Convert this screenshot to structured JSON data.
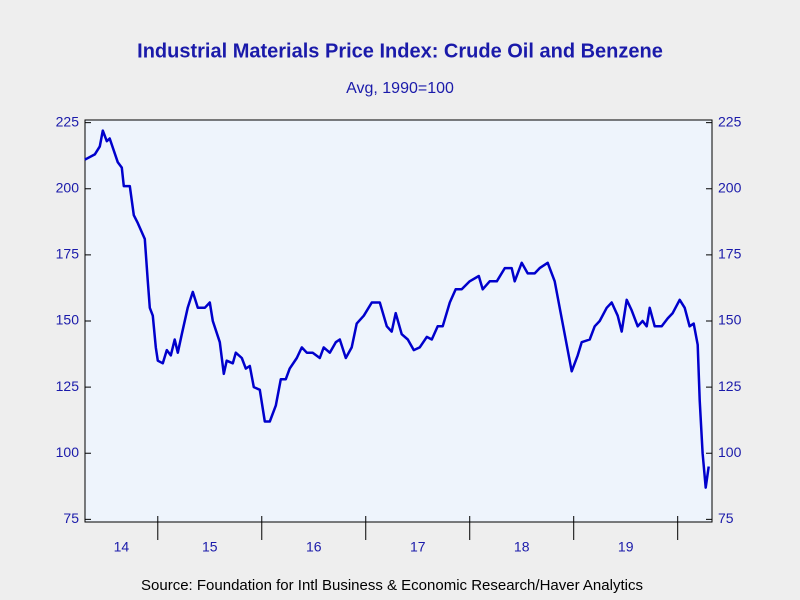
{
  "chart_data": {
    "type": "line",
    "title": "Industrial Materials Price Index: Crude Oil and Benzene",
    "subtitle": "Avg, 1990=100",
    "source": "Source:  Foundation for Intl Business & Economic Research/Haver Analytics",
    "x": [
      2014.298,
      2014.394,
      2014.442,
      2014.471,
      2014.51,
      2014.538,
      2014.615,
      2014.654,
      2014.673,
      2014.731,
      2014.769,
      2014.808,
      2014.875,
      2014.904,
      2014.923,
      2014.952,
      2014.981,
      2015.0,
      2015.048,
      2015.087,
      2015.125,
      2015.163,
      2015.192,
      2015.231,
      2015.288,
      2015.337,
      2015.385,
      2015.452,
      2015.5,
      2015.529,
      2015.596,
      2015.635,
      2015.663,
      2015.721,
      2015.75,
      2015.808,
      2015.846,
      2015.885,
      2015.923,
      2015.981,
      2016.029,
      2016.077,
      2016.135,
      2016.183,
      2016.231,
      2016.269,
      2016.337,
      2016.385,
      2016.433,
      2016.49,
      2016.558,
      2016.596,
      2016.654,
      2016.712,
      2016.75,
      2016.808,
      2016.865,
      2016.913,
      2016.981,
      2017.058,
      2017.135,
      2017.202,
      2017.25,
      2017.288,
      2017.346,
      2017.404,
      2017.462,
      2017.519,
      2017.587,
      2017.635,
      2017.692,
      2017.74,
      2017.808,
      2017.865,
      2017.923,
      2018.0,
      2018.087,
      2018.125,
      2018.192,
      2018.26,
      2018.337,
      2018.404,
      2018.433,
      2018.5,
      2018.558,
      2018.625,
      2018.673,
      2018.75,
      2018.817,
      2018.865,
      2018.913,
      2018.981,
      2019.038,
      2019.077,
      2019.154,
      2019.202,
      2019.25,
      2019.317,
      2019.365,
      2019.423,
      2019.462,
      2019.51,
      2019.558,
      2019.615,
      2019.663,
      2019.702,
      2019.731,
      2019.779,
      2019.846,
      2019.904,
      2019.952,
      2020.019,
      2020.067,
      2020.115,
      2020.154,
      2020.192,
      2020.212,
      2020.24,
      2020.269,
      2020.298
    ],
    "series": [
      {
        "name": "Crude Oil and Benzene",
        "color": "#0000cc",
        "values": [
          211,
          213,
          216,
          222,
          218,
          219,
          210,
          208,
          201,
          201,
          190,
          187,
          181,
          165,
          155,
          152,
          140,
          135,
          134,
          139,
          137,
          143,
          138,
          145,
          155,
          161,
          155,
          155,
          157,
          150,
          142,
          130,
          135,
          134,
          138,
          136,
          132,
          133,
          125,
          124,
          112,
          112,
          118,
          128,
          128,
          132,
          136,
          140,
          138,
          138,
          136,
          140,
          138,
          142,
          143,
          136,
          140,
          149,
          152,
          157,
          157,
          148,
          146,
          153,
          145,
          143,
          139,
          140,
          144,
          143,
          148,
          148,
          157,
          162,
          162,
          165,
          167,
          162,
          165,
          165,
          170,
          170,
          165,
          172,
          168,
          168,
          170,
          172,
          165,
          155,
          145,
          131,
          137,
          142,
          143,
          148,
          150,
          155,
          157,
          152,
          146,
          158,
          154,
          148,
          150,
          148,
          155,
          148,
          148,
          151,
          153,
          158,
          155,
          148,
          149,
          141,
          120,
          100,
          87,
          95
        ]
      }
    ],
    "xlim": [
      2014.3,
      2020.33
    ],
    "year_boundaries": [
      2015,
      2016,
      2017,
      2018,
      2019,
      2020
    ],
    "xticks": [
      {
        "value": 2014.65,
        "label": "14"
      },
      {
        "value": 2015.5,
        "label": "15"
      },
      {
        "value": 2016.5,
        "label": "16"
      },
      {
        "value": 2017.5,
        "label": "17"
      },
      {
        "value": 2018.5,
        "label": "18"
      },
      {
        "value": 2019.5,
        "label": "19"
      }
    ],
    "ylim": [
      74,
      226
    ],
    "yticks": [
      75,
      100,
      125,
      150,
      175,
      200,
      225
    ]
  }
}
